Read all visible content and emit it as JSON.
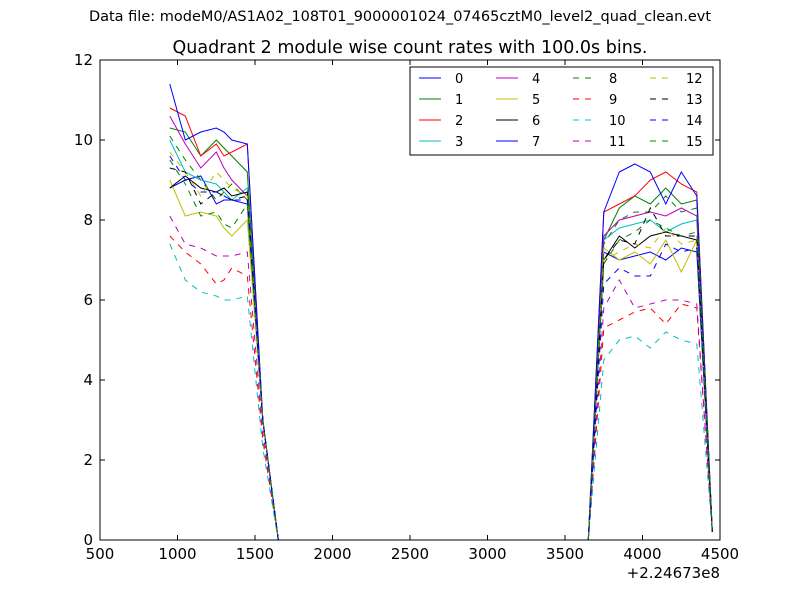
{
  "supertitle": "Data file: modeM0/AS1A02_108T01_9000001024_07465cztM0_level2_quad_clean.evt",
  "chart_data": {
    "type": "line",
    "title": "Quadrant 2 module wise count rates with 100.0s bins.",
    "xlabel": "",
    "ylabel": "",
    "x_offset_label": "+2.24673e8",
    "xlim": [
      500,
      4500
    ],
    "ylim": [
      0,
      12
    ],
    "xticks": [
      500,
      1000,
      1500,
      2000,
      2500,
      3000,
      3500,
      4000,
      4500
    ],
    "yticks": [
      0,
      2,
      4,
      6,
      8,
      10,
      12
    ],
    "grid": false,
    "legend_position": "top-right",
    "x": [
      950,
      1050,
      1150,
      1250,
      1300,
      1350,
      1450,
      1550,
      1650,
      1750,
      3650,
      3750,
      3850,
      3950,
      4050,
      4150,
      4250,
      4350,
      4450
    ],
    "series": [
      {
        "name": "0",
        "color": "#0000ff",
        "dash": "solid",
        "values": [
          8.8,
          9.0,
          9.1,
          8.4,
          8.5,
          8.5,
          8.4,
          3.0,
          0.0,
          0.0,
          0.0,
          7.2,
          7.0,
          7.1,
          7.2,
          7.0,
          7.3,
          7.2,
          0.2
        ]
      },
      {
        "name": "1",
        "color": "#008000",
        "dash": "solid",
        "values": [
          10.3,
          10.2,
          9.6,
          10.0,
          9.8,
          9.6,
          9.2,
          3.0,
          0.0,
          0.0,
          0.0,
          7.5,
          8.3,
          8.6,
          8.4,
          8.8,
          8.4,
          8.5,
          0.2
        ]
      },
      {
        "name": "2",
        "color": "#ff0000",
        "dash": "solid",
        "values": [
          10.8,
          10.6,
          9.6,
          9.9,
          9.6,
          9.7,
          9.9,
          3.0,
          0.0,
          0.0,
          0.0,
          8.2,
          8.4,
          8.6,
          9.0,
          9.2,
          8.9,
          8.7,
          0.2
        ]
      },
      {
        "name": "3",
        "color": "#00bfbf",
        "dash": "solid",
        "values": [
          10.0,
          9.2,
          9.0,
          8.9,
          8.7,
          8.5,
          8.8,
          3.0,
          0.0,
          0.0,
          0.0,
          7.5,
          7.8,
          7.9,
          8.0,
          7.7,
          7.9,
          8.0,
          0.2
        ]
      },
      {
        "name": "4",
        "color": "#bf00bf",
        "dash": "solid",
        "values": [
          10.6,
          9.9,
          9.3,
          9.7,
          9.3,
          9.0,
          8.6,
          3.0,
          0.0,
          0.0,
          0.0,
          7.6,
          8.0,
          8.1,
          8.2,
          8.1,
          8.3,
          8.1,
          0.2
        ]
      },
      {
        "name": "5",
        "color": "#bfbf00",
        "dash": "solid",
        "values": [
          9.0,
          8.1,
          8.2,
          8.1,
          7.8,
          7.6,
          8.0,
          3.0,
          0.0,
          0.0,
          0.0,
          7.3,
          7.0,
          7.2,
          6.9,
          7.5,
          6.7,
          7.5,
          0.2
        ]
      },
      {
        "name": "6",
        "color": "#000000",
        "dash": "solid",
        "values": [
          8.8,
          9.1,
          8.8,
          8.7,
          8.8,
          8.6,
          8.7,
          3.0,
          0.0,
          0.0,
          0.0,
          7.0,
          7.6,
          7.3,
          7.6,
          7.7,
          7.6,
          7.5,
          0.2
        ]
      },
      {
        "name": "7",
        "color": "#0000ff",
        "dash": "solid",
        "values": [
          11.4,
          10.0,
          10.2,
          10.3,
          10.2,
          10.0,
          9.9,
          3.0,
          0.0,
          0.0,
          0.0,
          8.2,
          9.2,
          9.4,
          9.2,
          8.4,
          9.2,
          8.6,
          0.2
        ]
      },
      {
        "name": "8",
        "color": "#008000",
        "dash": "dashed",
        "values": [
          10.1,
          9.5,
          9.0,
          8.5,
          8.7,
          8.9,
          8.5,
          3.0,
          0.0,
          0.0,
          0.0,
          7.4,
          8.0,
          8.2,
          8.2,
          8.6,
          8.2,
          8.3,
          0.2
        ]
      },
      {
        "name": "9",
        "color": "#ff0000",
        "dash": "dashed",
        "values": [
          7.6,
          7.2,
          6.9,
          6.4,
          6.5,
          6.8,
          6.6,
          2.5,
          0.0,
          0.0,
          0.0,
          5.3,
          5.5,
          5.7,
          5.8,
          5.4,
          5.9,
          5.8,
          0.2
        ]
      },
      {
        "name": "10",
        "color": "#00bfbf",
        "dash": "dashed",
        "values": [
          7.4,
          6.5,
          6.2,
          6.1,
          6.0,
          6.0,
          6.1,
          2.3,
          0.0,
          0.0,
          0.0,
          4.5,
          5.0,
          5.1,
          4.8,
          5.2,
          5.0,
          4.9,
          0.2
        ]
      },
      {
        "name": "11",
        "color": "#bf00bf",
        "dash": "dashed",
        "values": [
          8.1,
          7.4,
          7.3,
          7.1,
          7.1,
          7.1,
          7.2,
          2.7,
          0.0,
          0.0,
          0.0,
          5.8,
          6.5,
          5.8,
          5.9,
          6.0,
          6.0,
          5.9,
          0.2
        ]
      },
      {
        "name": "12",
        "color": "#bfbf00",
        "dash": "dashed",
        "values": [
          9.7,
          9.2,
          8.6,
          9.2,
          9.0,
          8.8,
          8.6,
          3.0,
          0.0,
          0.0,
          0.0,
          7.0,
          7.2,
          7.4,
          7.3,
          7.8,
          7.4,
          7.5,
          0.2
        ]
      },
      {
        "name": "13",
        "color": "#000000",
        "dash": "dashed",
        "values": [
          9.3,
          9.2,
          8.4,
          8.7,
          8.6,
          8.5,
          8.6,
          3.0,
          0.0,
          0.0,
          0.0,
          7.0,
          7.5,
          7.4,
          8.3,
          7.6,
          7.6,
          7.6,
          0.2
        ]
      },
      {
        "name": "14",
        "color": "#0000ff",
        "dash": "dashed",
        "values": [
          9.6,
          9.0,
          8.7,
          8.7,
          8.6,
          8.5,
          8.5,
          3.0,
          0.0,
          0.0,
          0.0,
          6.4,
          6.8,
          6.6,
          6.6,
          7.4,
          7.2,
          7.3,
          0.2
        ]
      },
      {
        "name": "15",
        "color": "#008000",
        "dash": "dashed",
        "values": [
          9.5,
          8.9,
          8.1,
          8.2,
          7.9,
          7.8,
          8.4,
          3.0,
          0.0,
          0.0,
          0.0,
          6.9,
          7.5,
          7.7,
          8.0,
          7.8,
          7.6,
          7.7,
          0.2
        ]
      }
    ]
  }
}
